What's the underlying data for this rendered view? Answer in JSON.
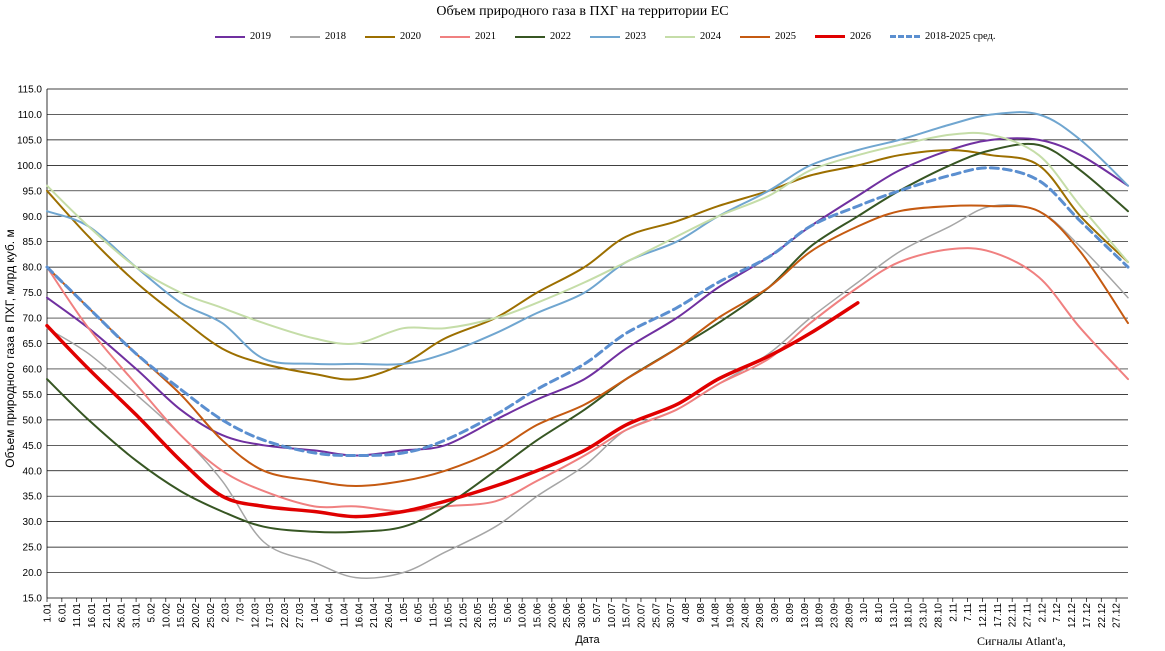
{
  "chart_data": {
    "type": "line",
    "title": "Объем природного газа в ПХГ на территории ЕС",
    "xlabel": "Дата",
    "ylabel": "Объем природного газа в ПХГ, млрд куб. м",
    "ylim": [
      15.0,
      115.0
    ],
    "yticks": [
      "15.0",
      "20.0",
      "25.0",
      "30.0",
      "35.0",
      "40.0",
      "45.0",
      "50.0",
      "55.0",
      "60.0",
      "65.0",
      "70.0",
      "75.0",
      "80.0",
      "85.0",
      "90.0",
      "95.0",
      "100.0",
      "105.0",
      "110.0",
      "115.0"
    ],
    "xticks": [
      "1.01",
      "6.01",
      "11.01",
      "16.01",
      "21.01",
      "26.01",
      "31.01",
      "5.02",
      "10.02",
      "15.02",
      "20.02",
      "25.02",
      "2.03",
      "7.03",
      "12.03",
      "17.03",
      "22.03",
      "27.03",
      "1.04",
      "6.04",
      "11.04",
      "16.04",
      "21.04",
      "26.04",
      "1.05",
      "6.05",
      "11.05",
      "16.05",
      "21.05",
      "26.05",
      "31.05",
      "5.06",
      "10.06",
      "15.06",
      "20.06",
      "25.06",
      "30.06",
      "5.07",
      "10.07",
      "15.07",
      "20.07",
      "25.07",
      "30.07",
      "4.08",
      "9.08",
      "14.08",
      "19.08",
      "24.08",
      "29.08",
      "3.09",
      "8.09",
      "13.09",
      "18.09",
      "23.09",
      "28.09",
      "3.10",
      "8.10",
      "13.10",
      "18.10",
      "23.10",
      "28.10",
      "2.11",
      "7.11",
      "12.11",
      "17.11",
      "22.11",
      "27.11",
      "2.12",
      "7.12",
      "12.12",
      "17.12",
      "22.12",
      "27.12"
    ],
    "x_day_of_year": [
      1,
      15,
      31,
      46,
      60,
      74,
      91,
      105,
      121,
      135,
      152,
      166,
      182,
      196,
      213,
      227,
      244,
      258,
      274,
      288,
      305,
      319,
      335,
      349,
      365
    ],
    "grid": "horizontal",
    "legend_position": "top",
    "series": [
      {
        "name": "2019",
        "color": "#7030A0",
        "width": 2,
        "dash": "",
        "values": [
          74,
          68,
          60,
          52,
          47,
          45,
          44,
          43,
          44,
          45,
          50,
          54,
          58,
          64,
          70,
          76,
          82,
          88,
          94,
          99,
          103,
          105,
          105,
          102,
          96
        ]
      },
      {
        "name": "2018",
        "color": "#A6A6A6",
        "width": 1.5,
        "dash": "",
        "values": [
          68,
          63,
          55,
          47,
          38,
          26,
          22,
          19,
          20,
          24,
          29,
          35,
          41,
          48,
          52,
          57,
          63,
          70,
          77,
          83,
          88,
          92,
          91,
          84,
          74
        ]
      },
      {
        "name": "2020",
        "color": "#9C6F00",
        "width": 2,
        "dash": "",
        "values": [
          95,
          86,
          77,
          70,
          64,
          61,
          59,
          58,
          61,
          66,
          70,
          75,
          80,
          86,
          89,
          92,
          95,
          98,
          100,
          102,
          103,
          102,
          100,
          90,
          81
        ]
      },
      {
        "name": "2021",
        "color": "#F08080",
        "width": 2,
        "dash": "",
        "values": [
          80,
          68,
          57,
          47,
          40,
          36,
          33,
          33,
          32,
          33,
          34,
          38,
          43,
          48,
          52,
          57,
          62,
          69,
          76,
          81,
          83.5,
          83,
          78,
          68,
          58
        ]
      },
      {
        "name": "2022",
        "color": "#375623",
        "width": 2,
        "dash": "",
        "values": [
          58,
          50,
          42,
          36,
          32,
          29,
          28,
          28,
          29,
          33,
          40,
          46,
          52,
          58,
          64,
          69,
          76,
          84,
          90,
          95,
          100,
          103,
          104,
          99,
          91
        ]
      },
      {
        "name": "2023",
        "color": "#70A6D0",
        "width": 2,
        "dash": "",
        "values": [
          91,
          88,
          80,
          73,
          69,
          62,
          61,
          61,
          61,
          63,
          67,
          71,
          75,
          81,
          85,
          90,
          95,
          100,
          103,
          105,
          108,
          110,
          110,
          105,
          96
        ]
      },
      {
        "name": "2024",
        "color": "#C5DDA8",
        "width": 2,
        "dash": "",
        "values": [
          96,
          88,
          80,
          75,
          72,
          69,
          66,
          65,
          68,
          68,
          70,
          73,
          77,
          81,
          86,
          90,
          94,
          99,
          102,
          104,
          106,
          106,
          102,
          92,
          81
        ]
      },
      {
        "name": "2025",
        "color": "#C55A11",
        "width": 2,
        "dash": "",
        "values": [
          80,
          72,
          63,
          55,
          46,
          40,
          38,
          37,
          38,
          40,
          44,
          49,
          53,
          58,
          64,
          70,
          76,
          83,
          88,
          91,
          92,
          92,
          91,
          83,
          69
        ]
      },
      {
        "name": "2026",
        "color": "#E00000",
        "width": 3.5,
        "dash": "",
        "values": [
          68.5,
          60,
          51,
          42,
          35,
          33,
          32,
          31,
          32,
          34,
          37,
          40,
          44,
          49,
          53,
          58,
          62.5,
          67,
          73
        ]
      },
      {
        "name": "2018-2025 сред.",
        "color": "#5B8FD0",
        "width": 3,
        "dash": "8,5",
        "values": [
          80,
          72,
          63,
          56,
          50,
          46,
          43.5,
          43,
          43.5,
          46,
          51,
          56,
          61,
          67,
          72,
          77,
          82,
          88,
          92,
          95,
          98,
          99.5,
          97,
          89,
          80
        ]
      }
    ]
  },
  "credit": "Сигналы Atlant'a,"
}
